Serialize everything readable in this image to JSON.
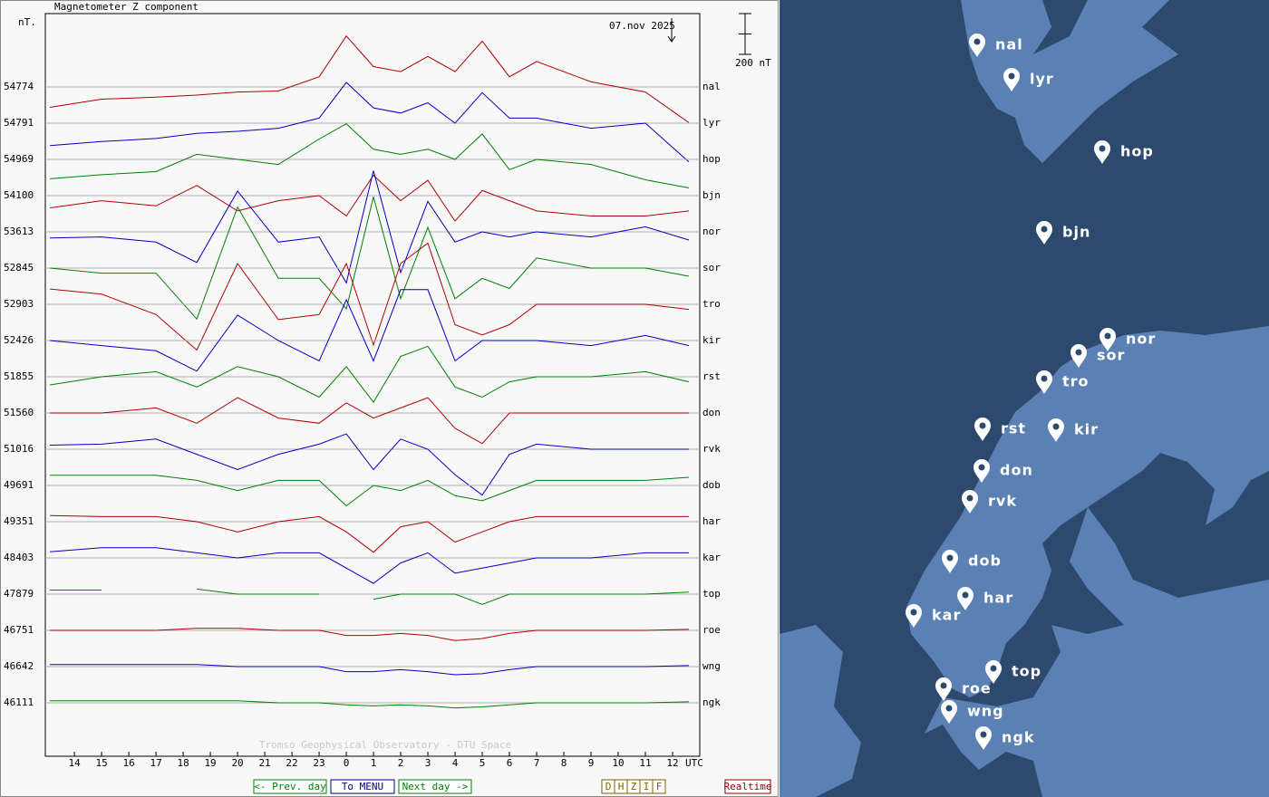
{
  "chart_data": {
    "type": "line",
    "title": "Magnetometer Z component",
    "y_unit": "nT.",
    "date": "07.nov 2025",
    "scale_bar": {
      "value": 200,
      "label": "200 nT"
    },
    "x_unit": "UTC",
    "footer": "Tromso Geophysical Observatory - DTU Space",
    "xlim": [
      12.93,
      37
    ],
    "xticks": [
      14,
      15,
      16,
      17,
      18,
      19,
      20,
      21,
      22,
      23,
      {
        "value": 24,
        "label": "0"
      },
      {
        "value": 25,
        "label": "1"
      },
      {
        "value": 26,
        "label": "2"
      },
      {
        "value": 27,
        "label": "3"
      },
      {
        "value": 28,
        "label": "4"
      },
      {
        "value": 29,
        "label": "5"
      },
      {
        "value": 30,
        "label": "6"
      },
      {
        "value": 31,
        "label": "7"
      },
      {
        "value": 32,
        "label": "8"
      },
      {
        "value": 33,
        "label": "9"
      },
      {
        "value": 34,
        "label": "10"
      },
      {
        "value": 35,
        "label": "11"
      },
      {
        "value": 36,
        "label": "12"
      }
    ],
    "x": [
      13.1,
      15,
      17,
      18.5,
      20,
      21.5,
      23,
      24,
      25,
      26,
      27,
      28,
      29,
      30,
      31,
      33,
      35,
      36.6
    ],
    "series": [
      {
        "name": "nal",
        "color": "#b00000",
        "baseline": 54774,
        "values": [
          -100,
          -60,
          -50,
          -40,
          -25,
          -20,
          50,
          250,
          100,
          75,
          150,
          75,
          225,
          50,
          125,
          25,
          -25,
          -175
        ]
      },
      {
        "name": "lyr",
        "color": "#0000c0",
        "baseline": 54791,
        "values": [
          -110,
          -90,
          -75,
          -50,
          -40,
          -25,
          25,
          200,
          75,
          50,
          100,
          0,
          150,
          25,
          25,
          -25,
          0,
          -190
        ]
      },
      {
        "name": "hop",
        "color": "#008000",
        "baseline": 54969,
        "values": [
          -95,
          -75,
          -60,
          25,
          0,
          -25,
          100,
          175,
          50,
          25,
          50,
          0,
          125,
          -50,
          0,
          -25,
          -100,
          -140
        ]
      },
      {
        "name": "bjn",
        "color": "#b00000",
        "baseline": 54100,
        "values": [
          -60,
          -25,
          -50,
          50,
          -75,
          -25,
          0,
          -100,
          100,
          -25,
          75,
          -125,
          25,
          -25,
          -75,
          -100,
          -100,
          -75
        ]
      },
      {
        "name": "nor",
        "color": "#0000c0",
        "baseline": 53613,
        "values": [
          -30,
          -25,
          -50,
          -150,
          200,
          -50,
          -25,
          -250,
          300,
          -200,
          150,
          -50,
          0,
          -25,
          0,
          -25,
          25,
          -40
        ]
      },
      {
        "name": "sor",
        "color": "#008000",
        "baseline": 52845,
        "values": [
          0,
          -25,
          -25,
          -250,
          300,
          -50,
          -50,
          -200,
          350,
          -150,
          200,
          -150,
          -50,
          -100,
          50,
          0,
          0,
          -40
        ]
      },
      {
        "name": "tro",
        "color": "#b00000",
        "baseline": 52903,
        "values": [
          75,
          50,
          -50,
          -225,
          200,
          -75,
          -50,
          200,
          -200,
          200,
          300,
          -100,
          -150,
          -100,
          0,
          0,
          0,
          -25
        ]
      },
      {
        "name": "kir",
        "color": "#0000c0",
        "baseline": 52426,
        "values": [
          0,
          -25,
          -50,
          -150,
          125,
          0,
          -100,
          200,
          -100,
          250,
          250,
          -100,
          0,
          0,
          0,
          -25,
          25,
          -25
        ]
      },
      {
        "name": "rst",
        "color": "#008000",
        "baseline": 51855,
        "values": [
          -40,
          0,
          25,
          -50,
          50,
          0,
          -100,
          50,
          -125,
          100,
          150,
          -50,
          -100,
          -25,
          0,
          0,
          25,
          -25
        ]
      },
      {
        "name": "don",
        "color": "#b00000",
        "baseline": 51560,
        "values": [
          0,
          0,
          25,
          -50,
          75,
          -25,
          -50,
          50,
          -25,
          25,
          75,
          -75,
          -150,
          0,
          0,
          0,
          0,
          0
        ]
      },
      {
        "name": "rvk",
        "color": "#0000c0",
        "baseline": 51016,
        "values": [
          20,
          25,
          50,
          -25,
          -100,
          -25,
          25,
          75,
          -100,
          50,
          0,
          -125,
          -225,
          -25,
          25,
          0,
          0,
          0
        ]
      },
      {
        "name": "dob",
        "color": "#008000",
        "baseline": 49691,
        "values": [
          50,
          50,
          50,
          25,
          -25,
          25,
          25,
          -100,
          0,
          -25,
          25,
          -50,
          -75,
          -25,
          25,
          25,
          25,
          40
        ]
      },
      {
        "name": "har",
        "color": "#b00000",
        "baseline": 49351,
        "values": [
          30,
          25,
          25,
          0,
          -50,
          0,
          25,
          -50,
          -150,
          -25,
          0,
          -100,
          -50,
          0,
          25,
          25,
          25,
          25
        ]
      },
      {
        "name": "kar",
        "color": "#0000c0",
        "baseline": 48403,
        "values": [
          30,
          50,
          50,
          25,
          0,
          25,
          25,
          -50,
          -125,
          -25,
          25,
          -75,
          -50,
          -25,
          0,
          0,
          25,
          25
        ]
      },
      {
        "name": "top",
        "color": "#008000",
        "baseline": 47879,
        "values": [
          20,
          20,
          null,
          25,
          0,
          0,
          0,
          null,
          -25,
          0,
          0,
          0,
          -50,
          0,
          0,
          0,
          0,
          10
        ]
      },
      {
        "name": "roe",
        "color": "#b00000",
        "baseline": 46751,
        "values": [
          0,
          0,
          0,
          10,
          10,
          0,
          0,
          -25,
          -25,
          -15,
          -25,
          -50,
          -40,
          -15,
          0,
          0,
          0,
          5
        ]
      },
      {
        "name": "wng",
        "color": "#0000c0",
        "baseline": 46642,
        "values": [
          10,
          10,
          10,
          10,
          0,
          0,
          0,
          -25,
          -25,
          -15,
          -25,
          -40,
          -35,
          -15,
          0,
          0,
          0,
          5
        ]
      },
      {
        "name": "ngk",
        "color": "#008000",
        "baseline": 46111,
        "values": [
          10,
          10,
          10,
          10,
          10,
          0,
          0,
          -10,
          -15,
          -10,
          -15,
          -25,
          -20,
          -10,
          0,
          0,
          0,
          5
        ]
      }
    ]
  },
  "buttons": {
    "nav": [
      "<- Prev. day",
      "To MENU",
      "Next day ->"
    ],
    "components": [
      "D",
      "H",
      "Z",
      "I",
      "F"
    ],
    "realtime": "Realtime"
  }
}
